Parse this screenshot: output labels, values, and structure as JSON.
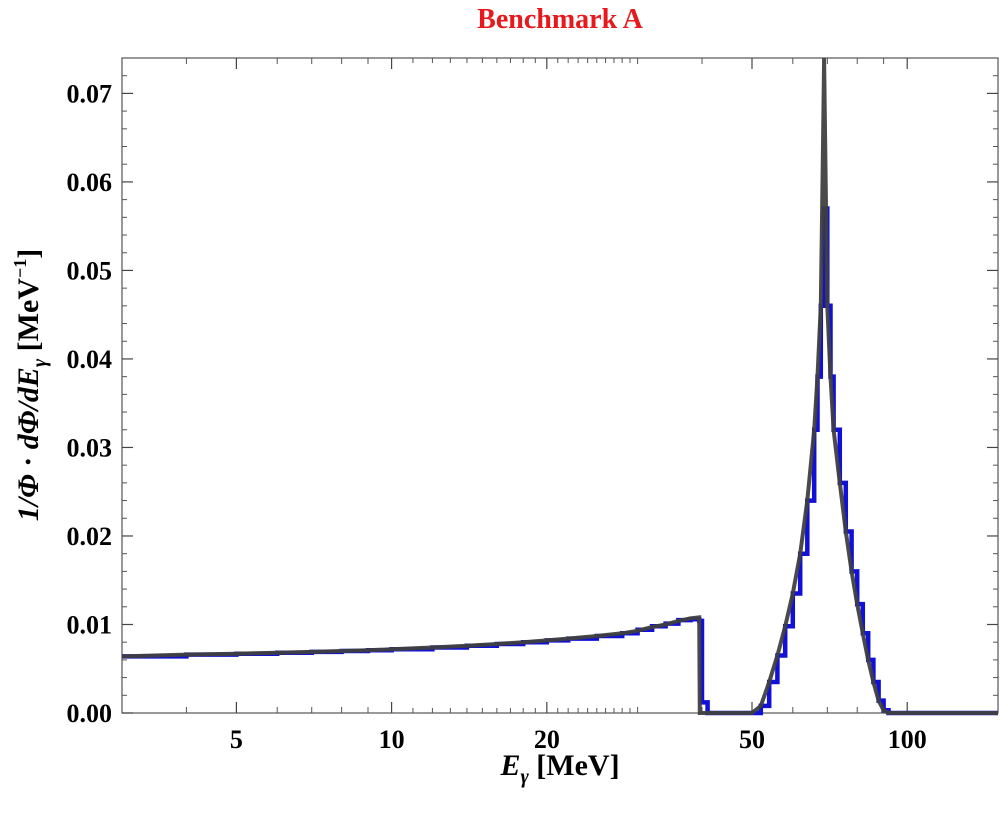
{
  "chart_data": {
    "type": "line",
    "title": "Benchmark A",
    "xlabel": "E_γ [MeV]",
    "ylabel": "1/Φ · dΦ/dE_γ [MeV^-1]",
    "xscale": "log",
    "xlim": [
      3,
      150
    ],
    "ylim": [
      0,
      0.074
    ],
    "grid": false,
    "x_ticks": [
      5,
      10,
      20,
      50,
      100
    ],
    "x_tick_labels": [
      "5",
      "10",
      "20",
      "50",
      "100"
    ],
    "y_ticks": [
      0,
      0.01,
      0.02,
      0.03,
      0.04,
      0.05,
      0.06,
      0.07
    ],
    "y_tick_labels": [
      "0.00",
      "0.01",
      "0.02",
      "0.03",
      "0.04",
      "0.05",
      "0.06",
      "0.07"
    ],
    "colors": {
      "title": "#e8191c",
      "histogram": "#1010d8",
      "analytic": "#404040"
    },
    "series": [
      {
        "key": "histogram",
        "style": "step",
        "x": [
          3,
          4,
          5,
          6,
          7,
          8,
          9,
          10,
          12,
          14,
          16,
          18,
          20,
          22,
          25,
          28,
          30,
          32,
          34,
          36,
          38,
          39.5,
          40,
          41,
          45,
          50,
          52,
          54,
          56,
          58,
          60,
          62,
          64,
          66,
          67,
          68,
          69,
          70,
          71,
          72,
          74,
          76,
          78,
          80,
          82,
          84,
          86,
          88,
          90,
          92,
          94,
          100,
          150
        ],
        "y": [
          0.0064,
          0.0066,
          0.0067,
          0.0068,
          0.0069,
          0.007,
          0.0071,
          0.0072,
          0.0074,
          0.0076,
          0.0078,
          0.008,
          0.0082,
          0.0084,
          0.0087,
          0.009,
          0.0094,
          0.0098,
          0.0101,
          0.0105,
          0.0106,
          0.0104,
          0.0012,
          0,
          0,
          0,
          0.0008,
          0.0035,
          0.0065,
          0.0098,
          0.0135,
          0.018,
          0.024,
          0.032,
          0.038,
          0.046,
          0.057,
          0.046,
          0.038,
          0.032,
          0.026,
          0.0205,
          0.016,
          0.0123,
          0.009,
          0.006,
          0.0035,
          0.0014,
          0.0003,
          0,
          0,
          0,
          0
        ]
      },
      {
        "key": "analytic",
        "style": "line",
        "x": [
          3,
          4,
          5,
          6,
          7,
          8,
          9,
          10,
          12,
          14,
          16,
          18,
          20,
          22,
          25,
          28,
          30,
          32,
          34,
          36,
          38,
          39.5,
          39.6,
          41,
          45,
          50,
          52,
          54,
          56,
          58,
          60,
          62,
          64,
          66,
          67,
          68,
          68.7,
          69,
          69.3,
          70,
          71,
          72,
          74,
          76,
          78,
          80,
          82,
          84,
          86,
          88,
          90,
          92,
          100,
          150
        ],
        "y": [
          0.0064,
          0.0066,
          0.0067,
          0.0068,
          0.0069,
          0.007,
          0.0071,
          0.0072,
          0.0074,
          0.0076,
          0.0078,
          0.008,
          0.0082,
          0.0084,
          0.0087,
          0.009,
          0.0093,
          0.0097,
          0.01,
          0.0104,
          0.0107,
          0.0108,
          0,
          0,
          0,
          0,
          0.0008,
          0.0035,
          0.0065,
          0.0098,
          0.0135,
          0.018,
          0.024,
          0.032,
          0.038,
          0.046,
          0.065,
          0.074,
          0.065,
          0.046,
          0.038,
          0.032,
          0.026,
          0.0205,
          0.016,
          0.0123,
          0.009,
          0.006,
          0.0035,
          0.0014,
          0.0003,
          0,
          0,
          0
        ]
      }
    ]
  }
}
